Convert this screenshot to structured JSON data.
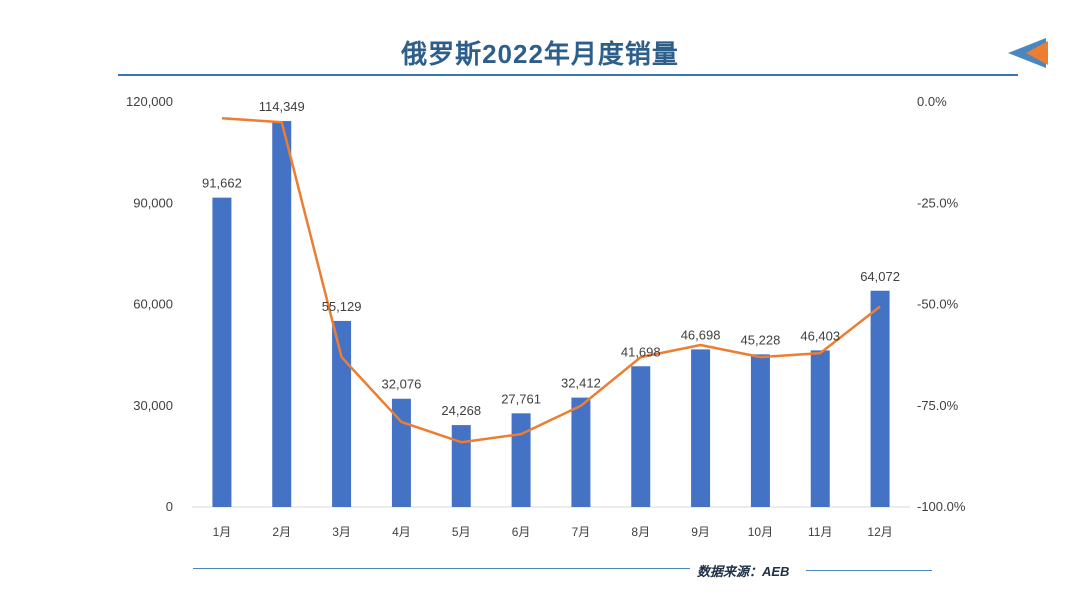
{
  "title": "俄罗斯2022年月度销量",
  "source": "数据来源：AEB",
  "colors": {
    "bar": "#4472c4",
    "line": "#ed7d31",
    "title": "#2e5f8a",
    "accent_blue": "#4a86c0",
    "accent_orange": "#ed7d31"
  },
  "chart_data": {
    "type": "bar",
    "categories": [
      "1月",
      "2月",
      "3月",
      "4月",
      "5月",
      "6月",
      "7月",
      "8月",
      "9月",
      "10月",
      "11月",
      "12月"
    ],
    "series": [
      {
        "values": [
          91662,
          114349,
          55129,
          32076,
          24268,
          27761,
          32412,
          41698,
          46698,
          45228,
          46403,
          64072
        ],
        "axis": "left",
        "type": "bar"
      },
      {
        "values": [
          -4.0,
          -5.0,
          -63.0,
          -79.0,
          -84.0,
          -82.0,
          -75.0,
          -63.0,
          -60.0,
          -63.0,
          -62.0,
          -50.5
        ],
        "axis": "right",
        "type": "line"
      }
    ],
    "data_labels": [
      "91,662",
      "114,349",
      "55,129",
      "32,076",
      "24,268",
      "27,761",
      "32,412",
      "41,698",
      "46,698",
      "45,228",
      "46,403",
      "64,072"
    ],
    "ylim": [
      0,
      120000
    ],
    "y_ticks": [
      0,
      30000,
      60000,
      90000,
      120000
    ],
    "y_tick_labels": [
      "0",
      "30,000",
      "60,000",
      "90,000",
      "120,000"
    ],
    "y2lim": [
      -100,
      0
    ],
    "y2_ticks": [
      0,
      -25,
      -50,
      -75,
      -100
    ],
    "y2_tick_labels": [
      "0.0%",
      "-25.0%",
      "-50.0%",
      "-75.0%",
      "-100.0%"
    ],
    "grid": false
  }
}
